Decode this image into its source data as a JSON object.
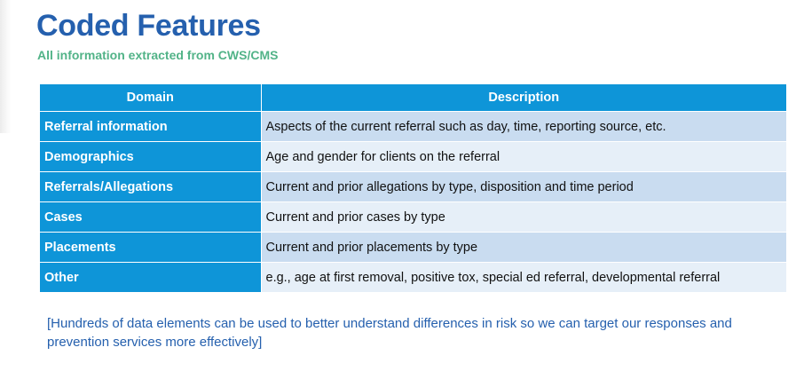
{
  "title": "Coded Features",
  "subtitle": "All information extracted from CWS/CMS",
  "table": {
    "headers": {
      "domain": "Domain",
      "description": "Description"
    },
    "rows": [
      {
        "domain": "Referral information",
        "description": "Aspects of the current referral such as day, time, reporting source, etc."
      },
      {
        "domain": "Demographics",
        "description": "Age and gender for clients on the referral"
      },
      {
        "domain": "Referrals/Allegations",
        "description": "Current and prior allegations by type, disposition and time period"
      },
      {
        "domain": "Cases",
        "description": "Current and prior cases by type"
      },
      {
        "domain": "Placements",
        "description": "Current and prior placements by type"
      },
      {
        "domain": "Other",
        "description": "e.g., age at first removal, positive tox, special ed referral, developmental referral"
      }
    ]
  },
  "note": "[Hundreds of data elements can be used to better understand differences in risk so we can target our responses and prevention services more effectively]",
  "colors": {
    "title": "#2560ae",
    "subtitle": "#52b388",
    "header_bg": "#0e95d8",
    "row_odd": "#c9dcf0",
    "row_even": "#e6eff8"
  }
}
